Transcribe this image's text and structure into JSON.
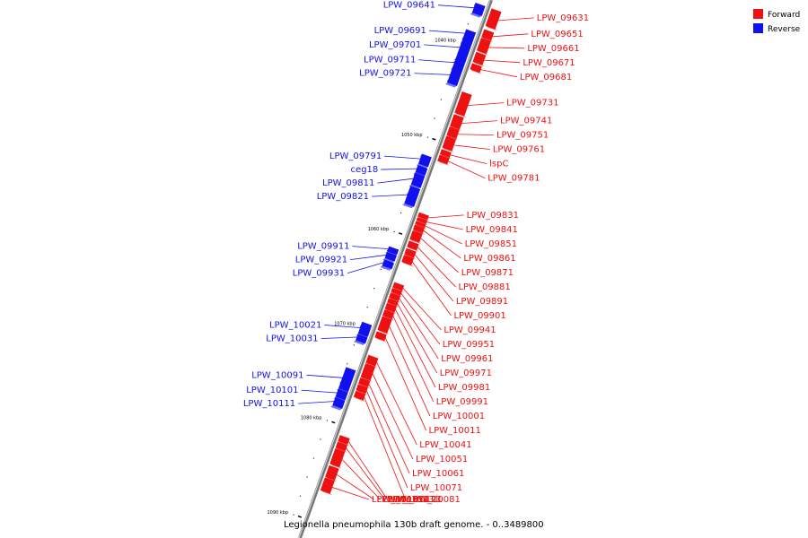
{
  "title": "Legionella pneumophila 130b draft genome. - 0..3489800",
  "colors": {
    "forward": "#ee1111",
    "reverse": "#1111ee",
    "backbone": "#999999"
  },
  "legend": [
    {
      "name": "Forward",
      "color": "#ee1111"
    },
    {
      "name": "Reverse",
      "color": "#1111ee"
    }
  ],
  "axis": {
    "start_kbp": 1035,
    "end_kbp": 1092,
    "unit": "kbp"
  },
  "ticks": [
    {
      "kbp": 1040,
      "label": "1040 kbp"
    },
    {
      "kbp": 1050,
      "label": "1050 kbp"
    },
    {
      "kbp": 1060,
      "label": "1060 kbp"
    },
    {
      "kbp": 1070,
      "label": "1070 kbp"
    },
    {
      "kbp": 1080,
      "label": "1080 kbp"
    },
    {
      "kbp": 1090,
      "label": "1090 kbp"
    }
  ],
  "genes": [
    {
      "name": "LPW_09631",
      "strand": "+",
      "start": 1035.8,
      "end": 1037.6
    },
    {
      "name": "LPW_09641",
      "strand": "-",
      "start": 1035.8,
      "end": 1036.8
    },
    {
      "name": "LPW_09651",
      "strand": "+",
      "start": 1038.0,
      "end": 1038.8
    },
    {
      "name": "LPW_09661",
      "strand": "+",
      "start": 1038.9,
      "end": 1040.2
    },
    {
      "name": "LPW_09671",
      "strand": "+",
      "start": 1040.4,
      "end": 1041.4
    },
    {
      "name": "LPW_09681",
      "strand": "+",
      "start": 1041.6,
      "end": 1042.2
    },
    {
      "name": "LPW_09691",
      "strand": "-",
      "start": 1038.6,
      "end": 1039.4
    },
    {
      "name": "LPW_09701",
      "strand": "-",
      "start": 1039.4,
      "end": 1041.6
    },
    {
      "name": "LPW_09711",
      "strand": "-",
      "start": 1041.6,
      "end": 1042.6
    },
    {
      "name": "LPW_09721",
      "strand": "-",
      "start": 1042.6,
      "end": 1044.2
    },
    {
      "name": "LPW_09731",
      "strand": "+",
      "start": 1044.6,
      "end": 1046.8
    },
    {
      "name": "LPW_09741",
      "strand": "+",
      "start": 1047.0,
      "end": 1048.2
    },
    {
      "name": "LPW_09751",
      "strand": "+",
      "start": 1048.3,
      "end": 1049.2
    },
    {
      "name": "LPW_09761",
      "strand": "+",
      "start": 1049.3,
      "end": 1050.5
    },
    {
      "name": "lspC",
      "strand": "+",
      "start": 1050.7,
      "end": 1051.2
    },
    {
      "name": "LPW_09781",
      "strand": "+",
      "start": 1051.3,
      "end": 1051.9
    },
    {
      "name": "LPW_09791",
      "strand": "-",
      "start": 1051.8,
      "end": 1052.8
    },
    {
      "name": "ceg18",
      "strand": "-",
      "start": 1053.0,
      "end": 1053.7
    },
    {
      "name": "LPW_09811",
      "strand": "-",
      "start": 1053.8,
      "end": 1055.0
    },
    {
      "name": "LPW_09821",
      "strand": "-",
      "start": 1055.2,
      "end": 1057.0
    },
    {
      "name": "LPW_09831",
      "strand": "+",
      "start": 1057.4,
      "end": 1057.8
    },
    {
      "name": "LPW_09841",
      "strand": "+",
      "start": 1057.9,
      "end": 1058.2
    },
    {
      "name": "LPW_09851",
      "strand": "+",
      "start": 1058.3,
      "end": 1058.6
    },
    {
      "name": "LPW_09861",
      "strand": "+",
      "start": 1058.7,
      "end": 1059.2
    },
    {
      "name": "LPW_09871",
      "strand": "+",
      "start": 1059.3,
      "end": 1060.2
    },
    {
      "name": "LPW_09881",
      "strand": "+",
      "start": 1060.4,
      "end": 1061.0
    },
    {
      "name": "LPW_09891",
      "strand": "+",
      "start": 1061.2,
      "end": 1061.8
    },
    {
      "name": "LPW_09901",
      "strand": "+",
      "start": 1061.9,
      "end": 1062.6
    },
    {
      "name": "LPW_09911",
      "strand": "-",
      "start": 1061.6,
      "end": 1062.1
    },
    {
      "name": "LPW_09921",
      "strand": "-",
      "start": 1062.2,
      "end": 1062.8
    },
    {
      "name": "LPW_09931",
      "strand": "-",
      "start": 1063.0,
      "end": 1063.6
    },
    {
      "name": "LPW_09941",
      "strand": "+",
      "start": 1064.8,
      "end": 1065.3
    },
    {
      "name": "LPW_09951",
      "strand": "+",
      "start": 1065.4,
      "end": 1065.8
    },
    {
      "name": "LPW_09961",
      "strand": "+",
      "start": 1065.9,
      "end": 1066.4
    },
    {
      "name": "LPW_09971",
      "strand": "+",
      "start": 1066.5,
      "end": 1066.9
    },
    {
      "name": "LPW_09981",
      "strand": "+",
      "start": 1067.0,
      "end": 1067.6
    },
    {
      "name": "LPW_09991",
      "strand": "+",
      "start": 1067.7,
      "end": 1068.3
    },
    {
      "name": "LPW_10001",
      "strand": "+",
      "start": 1068.4,
      "end": 1069.8
    },
    {
      "name": "LPW_10011",
      "strand": "+",
      "start": 1070.0,
      "end": 1070.6
    },
    {
      "name": "LPW_10021",
      "strand": "-",
      "start": 1069.6,
      "end": 1070.8
    },
    {
      "name": "LPW_10031",
      "strand": "-",
      "start": 1070.9,
      "end": 1071.5
    },
    {
      "name": "LPW_10041",
      "strand": "+",
      "start": 1072.5,
      "end": 1073.3
    },
    {
      "name": "LPW_10051",
      "strand": "+",
      "start": 1073.4,
      "end": 1074.8
    },
    {
      "name": "LPW_10061",
      "strand": "+",
      "start": 1074.9,
      "end": 1075.5
    },
    {
      "name": "LPW_10071",
      "strand": "+",
      "start": 1075.6,
      "end": 1076.2
    },
    {
      "name": "LPW_10081",
      "strand": "+",
      "start": 1076.3,
      "end": 1076.9
    },
    {
      "name": "LPW_10091",
      "strand": "-",
      "start": 1074.4,
      "end": 1076.6
    },
    {
      "name": "LPW_10101",
      "strand": "-",
      "start": 1076.7,
      "end": 1077.5
    },
    {
      "name": "LPW_10111",
      "strand": "-",
      "start": 1077.6,
      "end": 1078.4
    },
    {
      "name": "LPW_10121",
      "strand": "+",
      "start": 1081.0,
      "end": 1081.6
    },
    {
      "name": "LPW_10131",
      "strand": "+",
      "start": 1081.7,
      "end": 1082.3
    },
    {
      "name": "LPW_10141",
      "strand": "+",
      "start": 1082.4,
      "end": 1084.0
    },
    {
      "name": "LPW_10151",
      "strand": "+",
      "start": 1084.2,
      "end": 1085.4
    },
    {
      "name": "LPW_10161",
      "strand": "+",
      "start": 1085.5,
      "end": 1086.8
    }
  ]
}
